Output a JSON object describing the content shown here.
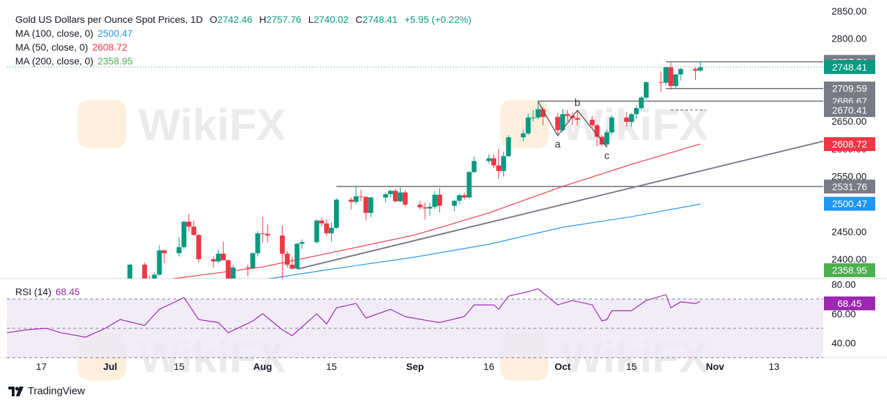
{
  "header": {
    "symbol": "Gold US Dollars per Ounce Spot Prices, 1D",
    "o_label": "O",
    "o": "2742.46",
    "h_label": "H",
    "h": "2757.76",
    "l_label": "L",
    "l": "2740.02",
    "c_label": "C",
    "c": "2748.41",
    "change": "+5.95 (+0.22%)"
  },
  "ma_legend": [
    {
      "label": "MA (100, close, 0)",
      "value": "2500.47",
      "color": "#2196f3"
    },
    {
      "label": "MA (50, close, 0)",
      "value": "2608.72",
      "color": "#f23645"
    },
    {
      "label": "MA (200, close, 0)",
      "value": "2358.95",
      "color": "#4caf50"
    }
  ],
  "rsi_legend": {
    "label": "RSI (14)",
    "value": "68.45",
    "color": "#9c27b0"
  },
  "branding": {
    "name": "TradingView",
    "watermark": "WikiFX"
  },
  "colors": {
    "up": "#089981",
    "down": "#f23645",
    "rsi": "#9c27b0",
    "rsi_band": "#ede7f6",
    "grey_label": "#787b86",
    "trendline": "#787b86"
  },
  "chart_data": {
    "type": "candlestick",
    "price_axis": {
      "ticks": [
        2400,
        2450,
        2500,
        2550,
        2600,
        2650,
        2700,
        2750,
        2800,
        2850
      ],
      "tick_labels": [
        "2400.00",
        "2450.00",
        "2500.00",
        "2550.00",
        "2600.00",
        "2650.00",
        "2700.00",
        "2750.00",
        "2800.00",
        "2850.00"
      ],
      "range": [
        2365,
        2870
      ]
    },
    "rsi_axis": {
      "ticks": [
        40,
        60,
        80
      ],
      "tick_labels": [
        "40.00",
        "60.00",
        "80.00"
      ],
      "range": [
        32,
        84
      ],
      "bands": [
        30,
        50,
        70
      ]
    },
    "x_axis": {
      "labels": [
        "17",
        "Jul",
        "15",
        "Aug",
        "15",
        "Sep",
        "16",
        "Oct",
        "15",
        "Nov",
        "13"
      ],
      "label_dates": [
        "2024-06-17",
        "2024-07-01",
        "2024-07-15",
        "2024-08-01",
        "2024-08-15",
        "2024-09-01",
        "2024-09-16",
        "2024-10-01",
        "2024-10-15",
        "2024-11-01",
        "2024-11-13"
      ],
      "range": [
        "2024-06-10",
        "2024-11-23"
      ]
    },
    "candles": [
      {
        "date": "2024-06-26",
        "o": 2320,
        "h": 2332,
        "l": 2297,
        "c": 2298
      },
      {
        "date": "2024-06-27",
        "o": 2298,
        "h": 2328,
        "l": 2294,
        "c": 2327
      },
      {
        "date": "2024-06-28",
        "o": 2327,
        "h": 2338,
        "l": 2318,
        "c": 2326
      },
      {
        "date": "2024-07-01",
        "o": 2326,
        "h": 2334,
        "l": 2317,
        "c": 2332
      },
      {
        "date": "2024-07-02",
        "o": 2332,
        "h": 2336,
        "l": 2319,
        "c": 2331
      },
      {
        "date": "2024-07-03",
        "o": 2331,
        "h": 2366,
        "l": 2330,
        "c": 2364
      },
      {
        "date": "2024-07-05",
        "o": 2356,
        "h": 2392,
        "l": 2353,
        "c": 2390
      },
      {
        "date": "2024-07-08",
        "o": 2390,
        "h": 2394,
        "l": 2360,
        "c": 2364
      },
      {
        "date": "2024-07-09",
        "o": 2364,
        "h": 2370,
        "l": 2355,
        "c": 2363
      },
      {
        "date": "2024-07-10",
        "o": 2363,
        "h": 2376,
        "l": 2363,
        "c": 2372
      },
      {
        "date": "2024-07-11",
        "o": 2372,
        "h": 2425,
        "l": 2370,
        "c": 2416
      },
      {
        "date": "2024-07-12",
        "o": 2416,
        "h": 2418,
        "l": 2393,
        "c": 2411
      },
      {
        "date": "2024-07-15",
        "o": 2411,
        "h": 2440,
        "l": 2405,
        "c": 2422
      },
      {
        "date": "2024-07-16",
        "o": 2422,
        "h": 2470,
        "l": 2419,
        "c": 2468
      },
      {
        "date": "2024-07-17",
        "o": 2468,
        "h": 2482,
        "l": 2451,
        "c": 2459
      },
      {
        "date": "2024-07-18",
        "o": 2459,
        "h": 2470,
        "l": 2442,
        "c": 2444
      },
      {
        "date": "2024-07-19",
        "o": 2444,
        "h": 2446,
        "l": 2394,
        "c": 2400
      },
      {
        "date": "2024-07-22",
        "o": 2400,
        "h": 2405,
        "l": 2385,
        "c": 2396
      },
      {
        "date": "2024-07-23",
        "o": 2396,
        "h": 2417,
        "l": 2393,
        "c": 2410
      },
      {
        "date": "2024-07-24",
        "o": 2410,
        "h": 2432,
        "l": 2398,
        "c": 2398
      },
      {
        "date": "2024-07-25",
        "o": 2398,
        "h": 2400,
        "l": 2354,
        "c": 2365
      },
      {
        "date": "2024-07-26",
        "o": 2365,
        "h": 2389,
        "l": 2364,
        "c": 2385
      },
      {
        "date": "2024-07-29",
        "o": 2385,
        "h": 2390,
        "l": 2369,
        "c": 2384
      },
      {
        "date": "2024-07-30",
        "o": 2384,
        "h": 2412,
        "l": 2381,
        "c": 2411
      },
      {
        "date": "2024-07-31",
        "o": 2411,
        "h": 2451,
        "l": 2405,
        "c": 2447
      },
      {
        "date": "2024-08-01",
        "o": 2447,
        "h": 2477,
        "l": 2430,
        "c": 2446
      },
      {
        "date": "2024-08-02",
        "o": 2446,
        "h": 2463,
        "l": 2430,
        "c": 2443
      },
      {
        "date": "2024-08-05",
        "o": 2443,
        "h": 2461,
        "l": 2364,
        "c": 2410
      },
      {
        "date": "2024-08-06",
        "o": 2410,
        "h": 2415,
        "l": 2385,
        "c": 2390
      },
      {
        "date": "2024-08-07",
        "o": 2390,
        "h": 2404,
        "l": 2381,
        "c": 2383
      },
      {
        "date": "2024-08-08",
        "o": 2383,
        "h": 2430,
        "l": 2382,
        "c": 2428
      },
      {
        "date": "2024-08-09",
        "o": 2428,
        "h": 2436,
        "l": 2419,
        "c": 2431
      },
      {
        "date": "2024-08-12",
        "o": 2431,
        "h": 2472,
        "l": 2428,
        "c": 2470
      },
      {
        "date": "2024-08-13",
        "o": 2470,
        "h": 2475,
        "l": 2460,
        "c": 2465
      },
      {
        "date": "2024-08-14",
        "o": 2465,
        "h": 2472,
        "l": 2442,
        "c": 2447
      },
      {
        "date": "2024-08-15",
        "o": 2447,
        "h": 2467,
        "l": 2432,
        "c": 2457
      },
      {
        "date": "2024-08-16",
        "o": 2457,
        "h": 2510,
        "l": 2455,
        "c": 2508
      },
      {
        "date": "2024-08-19",
        "o": 2508,
        "h": 2512,
        "l": 2490,
        "c": 2504
      },
      {
        "date": "2024-08-20",
        "o": 2504,
        "h": 2532,
        "l": 2500,
        "c": 2514
      },
      {
        "date": "2024-08-21",
        "o": 2514,
        "h": 2526,
        "l": 2505,
        "c": 2513
      },
      {
        "date": "2024-08-22",
        "o": 2513,
        "h": 2514,
        "l": 2470,
        "c": 2484
      },
      {
        "date": "2024-08-23",
        "o": 2484,
        "h": 2513,
        "l": 2476,
        "c": 2512
      },
      {
        "date": "2024-08-26",
        "o": 2512,
        "h": 2520,
        "l": 2503,
        "c": 2518
      },
      {
        "date": "2024-08-27",
        "o": 2518,
        "h": 2526,
        "l": 2512,
        "c": 2524
      },
      {
        "date": "2024-08-28",
        "o": 2524,
        "h": 2528,
        "l": 2503,
        "c": 2505
      },
      {
        "date": "2024-08-29",
        "o": 2505,
        "h": 2530,
        "l": 2503,
        "c": 2521
      },
      {
        "date": "2024-08-30",
        "o": 2521,
        "h": 2525,
        "l": 2495,
        "c": 2499
      },
      {
        "date": "2024-09-02",
        "o": 2499,
        "h": 2505,
        "l": 2490,
        "c": 2494
      },
      {
        "date": "2024-09-03",
        "o": 2494,
        "h": 2503,
        "l": 2472,
        "c": 2492
      },
      {
        "date": "2024-09-04",
        "o": 2492,
        "h": 2502,
        "l": 2479,
        "c": 2495
      },
      {
        "date": "2024-09-05",
        "o": 2495,
        "h": 2523,
        "l": 2491,
        "c": 2517
      },
      {
        "date": "2024-09-06",
        "o": 2517,
        "h": 2529,
        "l": 2485,
        "c": 2497
      },
      {
        "date": "2024-09-09",
        "o": 2497,
        "h": 2507,
        "l": 2487,
        "c": 2506
      },
      {
        "date": "2024-09-10",
        "o": 2506,
        "h": 2519,
        "l": 2500,
        "c": 2516
      },
      {
        "date": "2024-09-11",
        "o": 2516,
        "h": 2521,
        "l": 2508,
        "c": 2512
      },
      {
        "date": "2024-09-12",
        "o": 2512,
        "h": 2560,
        "l": 2510,
        "c": 2558
      },
      {
        "date": "2024-09-13",
        "o": 2558,
        "h": 2586,
        "l": 2556,
        "c": 2578
      },
      {
        "date": "2024-09-16",
        "o": 2578,
        "h": 2590,
        "l": 2574,
        "c": 2583
      },
      {
        "date": "2024-09-17",
        "o": 2583,
        "h": 2590,
        "l": 2565,
        "c": 2570
      },
      {
        "date": "2024-09-18",
        "o": 2570,
        "h": 2600,
        "l": 2546,
        "c": 2560
      },
      {
        "date": "2024-09-19",
        "o": 2560,
        "h": 2595,
        "l": 2550,
        "c": 2587
      },
      {
        "date": "2024-09-20",
        "o": 2587,
        "h": 2625,
        "l": 2585,
        "c": 2621
      },
      {
        "date": "2024-09-23",
        "o": 2621,
        "h": 2635,
        "l": 2614,
        "c": 2628
      },
      {
        "date": "2024-09-24",
        "o": 2628,
        "h": 2664,
        "l": 2625,
        "c": 2657
      },
      {
        "date": "2024-09-25",
        "o": 2657,
        "h": 2670,
        "l": 2650,
        "c": 2657
      },
      {
        "date": "2024-09-26",
        "o": 2657,
        "h": 2686,
        "l": 2654,
        "c": 2672
      },
      {
        "date": "2024-09-27",
        "o": 2672,
        "h": 2676,
        "l": 2643,
        "c": 2658
      },
      {
        "date": "2024-09-30",
        "o": 2658,
        "h": 2665,
        "l": 2624,
        "c": 2634
      },
      {
        "date": "2024-10-01",
        "o": 2634,
        "h": 2672,
        "l": 2630,
        "c": 2663
      },
      {
        "date": "2024-10-02",
        "o": 2663,
        "h": 2670,
        "l": 2650,
        "c": 2660
      },
      {
        "date": "2024-10-03",
        "o": 2660,
        "h": 2666,
        "l": 2643,
        "c": 2656
      },
      {
        "date": "2024-10-04",
        "o": 2656,
        "h": 2670,
        "l": 2643,
        "c": 2653
      },
      {
        "date": "2024-10-07",
        "o": 2653,
        "h": 2660,
        "l": 2636,
        "c": 2643
      },
      {
        "date": "2024-10-08",
        "o": 2643,
        "h": 2645,
        "l": 2605,
        "c": 2622
      },
      {
        "date": "2024-10-09",
        "o": 2622,
        "h": 2625,
        "l": 2605,
        "c": 2608
      },
      {
        "date": "2024-10-10",
        "o": 2608,
        "h": 2635,
        "l": 2603,
        "c": 2630
      },
      {
        "date": "2024-10-11",
        "o": 2630,
        "h": 2661,
        "l": 2626,
        "c": 2657
      },
      {
        "date": "2024-10-14",
        "o": 2657,
        "h": 2667,
        "l": 2640,
        "c": 2649
      },
      {
        "date": "2024-10-15",
        "o": 2649,
        "h": 2665,
        "l": 2640,
        "c": 2663
      },
      {
        "date": "2024-10-16",
        "o": 2663,
        "h": 2679,
        "l": 2655,
        "c": 2674
      },
      {
        "date": "2024-10-17",
        "o": 2674,
        "h": 2696,
        "l": 2670,
        "c": 2693
      },
      {
        "date": "2024-10-18",
        "o": 2693,
        "h": 2722,
        "l": 2690,
        "c": 2721
      },
      {
        "date": "2024-10-21",
        "o": 2721,
        "h": 2740,
        "l": 2703,
        "c": 2720
      },
      {
        "date": "2024-10-22",
        "o": 2720,
        "h": 2749,
        "l": 2715,
        "c": 2748
      },
      {
        "date": "2024-10-23",
        "o": 2748,
        "h": 2758,
        "l": 2707,
        "c": 2714
      },
      {
        "date": "2024-10-24",
        "o": 2714,
        "h": 2737,
        "l": 2709,
        "c": 2735
      },
      {
        "date": "2024-10-25",
        "o": 2735,
        "h": 2746,
        "l": 2724,
        "c": 2745
      },
      {
        "date": "2024-10-28",
        "o": 2745,
        "h": 2748,
        "l": 2725,
        "c": 2742
      },
      {
        "date": "2024-10-29",
        "o": 2742,
        "h": 2758,
        "l": 2740,
        "c": 2748
      }
    ],
    "ma_series": [
      {
        "name": "MA (100, close, 0)",
        "color": "#2196f3",
        "points": [
          [
            "2024-06-10",
            2308
          ],
          [
            "2024-07-01",
            2326
          ],
          [
            "2024-08-01",
            2363
          ],
          [
            "2024-08-15",
            2382
          ],
          [
            "2024-09-01",
            2404
          ],
          [
            "2024-09-16",
            2427
          ],
          [
            "2024-10-01",
            2458
          ],
          [
            "2024-10-15",
            2477
          ],
          [
            "2024-10-29",
            2500
          ]
        ]
      },
      {
        "name": "MA (50, close, 0)",
        "color": "#f23645",
        "points": [
          [
            "2024-06-10",
            2336
          ],
          [
            "2024-07-01",
            2350
          ],
          [
            "2024-07-15",
            2366
          ],
          [
            "2024-08-01",
            2386
          ],
          [
            "2024-08-15",
            2412
          ],
          [
            "2024-09-01",
            2444
          ],
          [
            "2024-09-16",
            2484
          ],
          [
            "2024-10-01",
            2532
          ],
          [
            "2024-10-15",
            2572
          ],
          [
            "2024-10-29",
            2609
          ]
        ]
      }
    ],
    "trendline": {
      "from": [
        "2024-08-08",
        2382
      ],
      "to": [
        "2024-11-23",
        2614
      ]
    },
    "levels": [
      {
        "value": 2757.84,
        "label": "2757.84",
        "from": "2024-10-22"
      },
      {
        "value": 2709.59,
        "label": "2709.59",
        "from": "2024-10-22"
      },
      {
        "value": 2686.67,
        "label": "2686.67",
        "from": "2024-09-26"
      },
      {
        "value": 2670.41,
        "label": "2670.41",
        "from": "2024-10-23",
        "dashed": true
      },
      {
        "value": 2531.76,
        "label": "2531.76",
        "from": "2024-08-16"
      }
    ],
    "current_price": {
      "value": 2748.41,
      "label": "2748.41"
    },
    "ma_tags": [
      {
        "value": 2608.72,
        "label": "2608.72",
        "color": "#f23645"
      },
      {
        "value": 2500.47,
        "label": "2500.47",
        "color": "#2196f3"
      },
      {
        "value": 2358.95,
        "label": "2358.95",
        "color": "#4caf50"
      }
    ],
    "abc_pattern": {
      "points": [
        [
          "2024-09-26",
          2686
        ],
        [
          "2024-09-30",
          2624
        ],
        [
          "2024-10-04",
          2670
        ],
        [
          "2024-10-10",
          2603
        ]
      ],
      "labels": [
        {
          "text": "a",
          "date": "2024-09-30",
          "value": 2624
        },
        {
          "text": "b",
          "date": "2024-10-04",
          "value": 2670
        },
        {
          "text": "c",
          "date": "2024-10-10",
          "value": 2603
        }
      ]
    },
    "rsi": {
      "name": "RSI (14)",
      "value_label": "68.45",
      "points": [
        [
          "2024-06-10",
          47
        ],
        [
          "2024-06-14",
          49
        ],
        [
          "2024-06-18",
          50
        ],
        [
          "2024-06-21",
          47
        ],
        [
          "2024-06-26",
          44
        ],
        [
          "2024-06-30",
          50
        ],
        [
          "2024-07-03",
          56
        ],
        [
          "2024-07-08",
          52
        ],
        [
          "2024-07-11",
          63
        ],
        [
          "2024-07-16",
          71
        ],
        [
          "2024-07-19",
          56
        ],
        [
          "2024-07-23",
          54
        ],
        [
          "2024-07-25",
          47
        ],
        [
          "2024-07-30",
          55
        ],
        [
          "2024-08-01",
          60
        ],
        [
          "2024-08-05",
          49
        ],
        [
          "2024-08-07",
          45
        ],
        [
          "2024-08-12",
          60
        ],
        [
          "2024-08-14",
          53
        ],
        [
          "2024-08-16",
          64
        ],
        [
          "2024-08-20",
          67
        ],
        [
          "2024-08-22",
          57
        ],
        [
          "2024-08-27",
          63
        ],
        [
          "2024-08-30",
          58
        ],
        [
          "2024-09-04",
          55
        ],
        [
          "2024-09-06",
          54
        ],
        [
          "2024-09-11",
          58
        ],
        [
          "2024-09-13",
          66
        ],
        [
          "2024-09-17",
          66
        ],
        [
          "2024-09-18",
          63
        ],
        [
          "2024-09-20",
          72
        ],
        [
          "2024-09-24",
          75
        ],
        [
          "2024-09-26",
          77
        ],
        [
          "2024-09-30",
          66
        ],
        [
          "2024-10-03",
          69
        ],
        [
          "2024-10-07",
          66
        ],
        [
          "2024-10-09",
          55
        ],
        [
          "2024-10-10",
          56
        ],
        [
          "2024-10-11",
          62
        ],
        [
          "2024-10-15",
          62
        ],
        [
          "2024-10-18",
          69
        ],
        [
          "2024-10-22",
          73
        ],
        [
          "2024-10-23",
          64
        ],
        [
          "2024-10-25",
          68
        ],
        [
          "2024-10-28",
          67
        ],
        [
          "2024-10-29",
          68.45
        ]
      ]
    }
  }
}
